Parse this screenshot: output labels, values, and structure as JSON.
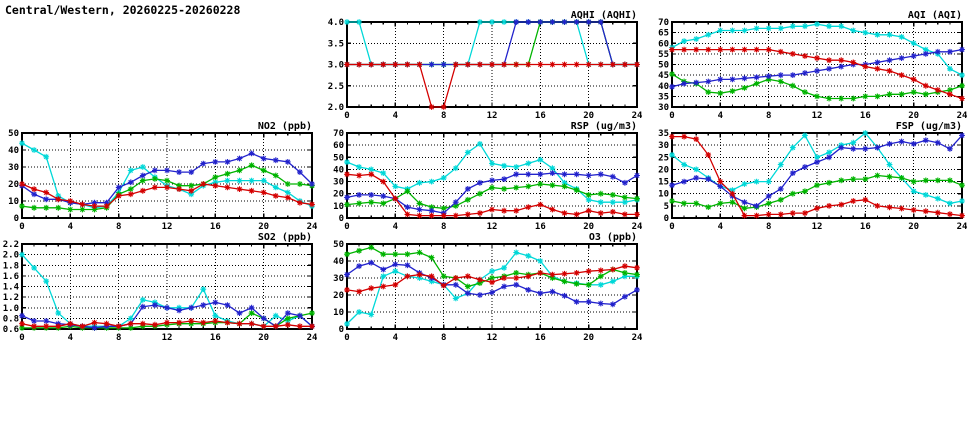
{
  "page": {
    "title": "Central/Western, 20260225-20260228"
  },
  "colors": {
    "red": "#d40000",
    "green": "#00b400",
    "blue": "#2222cc",
    "cyan": "#00d8d8"
  },
  "hours": [
    0,
    1,
    2,
    3,
    4,
    5,
    6,
    7,
    8,
    9,
    10,
    11,
    12,
    13,
    14,
    15,
    16,
    17,
    18,
    19,
    20,
    21,
    22,
    23,
    24
  ],
  "chart_data": [
    {
      "id": "aqhi",
      "type": "line",
      "title": "AQHI (AQHI)",
      "x_range": [
        0,
        24
      ],
      "x_tick_step": 4,
      "ylim": [
        2.0,
        4.0
      ],
      "y_ticks": [
        2.0,
        2.5,
        3.0,
        3.5,
        4.0
      ],
      "y_tick_labels": [
        "2.0",
        "2.5",
        "3.0",
        "3.5",
        "4.0"
      ],
      "grid": true,
      "legend": "none",
      "series": [
        {
          "name": "station-cyan",
          "color": "cyan",
          "values": [
            4,
            4,
            3,
            3,
            3,
            3,
            3,
            3,
            3,
            3,
            3,
            4,
            4,
            4,
            4,
            4,
            4,
            4,
            4,
            4,
            3,
            3,
            3,
            3,
            3
          ]
        },
        {
          "name": "station-green",
          "color": "green",
          "values": [
            3,
            3,
            3,
            3,
            3,
            3,
            3,
            3,
            3,
            3,
            3,
            3,
            3,
            3,
            3,
            3,
            4,
            4,
            4,
            4,
            4,
            4,
            3,
            3,
            3
          ]
        },
        {
          "name": "station-blue",
          "color": "blue",
          "values": [
            3,
            3,
            3,
            3,
            3,
            3,
            3,
            3,
            3,
            3,
            3,
            3,
            3,
            3,
            4,
            4,
            4,
            4,
            4,
            4,
            4,
            4,
            3,
            3,
            3
          ]
        },
        {
          "name": "station-red",
          "color": "red",
          "values": [
            3,
            3,
            3,
            3,
            3,
            3,
            3,
            2,
            2,
            3,
            3,
            3,
            3,
            3,
            3,
            3,
            3,
            3,
            3,
            3,
            3,
            3,
            3,
            3,
            3
          ]
        }
      ]
    },
    {
      "id": "aqi",
      "type": "line",
      "title": "AQI (AQI)",
      "x_range": [
        0,
        24
      ],
      "x_tick_step": 4,
      "ylim": [
        30,
        70
      ],
      "y_ticks": [
        30,
        35,
        40,
        45,
        50,
        55,
        60,
        65,
        70
      ],
      "y_tick_labels": [
        "30",
        "35",
        "40",
        "45",
        "50",
        "55",
        "60",
        "65",
        "70"
      ],
      "grid": true,
      "legend": "none",
      "series": [
        {
          "name": "station-cyan",
          "color": "cyan",
          "values": [
            58,
            61,
            62,
            64,
            66,
            66,
            66,
            67,
            67,
            67,
            68,
            68,
            69,
            68,
            68,
            66,
            65,
            64,
            64,
            63,
            60,
            57,
            55,
            48,
            45
          ]
        },
        {
          "name": "station-green",
          "color": "green",
          "values": [
            45.5,
            42,
            41,
            37,
            36.5,
            37.5,
            39,
            41,
            43,
            42,
            40,
            37,
            35,
            34,
            34,
            34,
            35,
            35,
            36,
            36,
            37,
            36,
            37,
            38,
            40
          ]
        },
        {
          "name": "station-blue",
          "color": "blue",
          "values": [
            39.5,
            41,
            41.5,
            42,
            43,
            43,
            43.5,
            44,
            44.5,
            45,
            45,
            46,
            47,
            48,
            49,
            50,
            50,
            51,
            52,
            53,
            54,
            55,
            56,
            56,
            57
          ]
        },
        {
          "name": "station-red",
          "color": "red",
          "values": [
            57,
            57,
            57,
            57,
            57,
            57,
            57,
            57,
            57,
            56,
            55,
            54,
            53,
            52,
            52,
            51,
            49,
            48,
            47,
            45,
            43,
            40,
            38,
            36,
            34
          ]
        }
      ]
    },
    {
      "id": "no2",
      "type": "line",
      "title": "NO2 (ppb)",
      "x_range": [
        0,
        24
      ],
      "x_tick_step": 4,
      "ylim": [
        0,
        50
      ],
      "y_ticks": [
        0,
        10,
        20,
        30,
        40,
        50
      ],
      "y_tick_labels": [
        "0",
        "10",
        "20",
        "30",
        "40",
        "50"
      ],
      "grid": true,
      "legend": "none",
      "series": [
        {
          "name": "station-cyan",
          "color": "cyan",
          "values": [
            44,
            40,
            36,
            13,
            9,
            8,
            6,
            7,
            15,
            28,
            30,
            24,
            19,
            17,
            14,
            19,
            21,
            22,
            22,
            22,
            22,
            18,
            15,
            10,
            7
          ]
        },
        {
          "name": "station-green",
          "color": "green",
          "values": [
            7,
            6,
            6,
            6,
            5,
            5,
            5,
            6,
            14,
            17,
            22,
            23,
            22,
            19,
            19,
            20,
            24,
            26,
            28,
            31,
            28,
            25,
            20,
            20,
            19
          ]
        },
        {
          "name": "station-blue",
          "color": "blue",
          "values": [
            19,
            14,
            11,
            11,
            9,
            8,
            9,
            9,
            18,
            21,
            25,
            28,
            28,
            27,
            27,
            32,
            33,
            33,
            35,
            38,
            35,
            34,
            33,
            27,
            20
          ]
        },
        {
          "name": "station-red",
          "color": "red",
          "values": [
            20,
            17,
            15,
            11,
            10,
            8,
            7,
            7,
            13,
            14,
            16,
            18,
            18,
            17,
            16,
            20,
            19,
            18,
            17,
            16,
            15,
            13,
            12,
            9,
            8
          ]
        }
      ]
    },
    {
      "id": "rsp",
      "type": "line",
      "title": "RSP (ug/m3)",
      "x_range": [
        0,
        24
      ],
      "x_tick_step": 4,
      "ylim": [
        0,
        70
      ],
      "y_ticks": [
        0,
        10,
        20,
        30,
        40,
        50,
        60,
        70
      ],
      "y_tick_labels": [
        "0",
        "10",
        "20",
        "30",
        "40",
        "50",
        "60",
        "70"
      ],
      "grid": true,
      "legend": "none",
      "series": [
        {
          "name": "station-cyan",
          "color": "cyan",
          "values": [
            46,
            42,
            40,
            37,
            26,
            24,
            29,
            30,
            33,
            41,
            54,
            61,
            45,
            43,
            42,
            45,
            48,
            41,
            29,
            24,
            15,
            13,
            13,
            13,
            15
          ]
        },
        {
          "name": "station-green",
          "color": "green",
          "values": [
            11,
            12,
            13,
            12,
            16,
            22,
            12,
            9,
            8,
            10,
            15,
            20,
            25,
            24,
            25,
            26,
            28,
            27,
            26,
            23,
            19,
            20,
            19,
            17,
            16
          ]
        },
        {
          "name": "station-blue",
          "color": "blue",
          "values": [
            17,
            19,
            19,
            18,
            16,
            9,
            7,
            6,
            4,
            13,
            24,
            29,
            31,
            32,
            36,
            36,
            36,
            37,
            36,
            36,
            35,
            36,
            34,
            29,
            35
          ]
        },
        {
          "name": "station-red",
          "color": "red",
          "values": [
            36,
            35,
            36,
            30,
            16,
            3,
            2,
            2,
            2,
            2,
            3,
            4,
            7,
            6,
            6,
            9,
            11,
            7,
            4,
            3,
            6,
            4,
            5,
            3,
            3
          ]
        }
      ]
    },
    {
      "id": "fsp",
      "type": "line",
      "title": "FSP (ug/m3)",
      "x_range": [
        0,
        24
      ],
      "x_tick_step": 4,
      "ylim": [
        0,
        35
      ],
      "y_ticks": [
        0,
        5,
        10,
        15,
        20,
        25,
        30,
        35
      ],
      "y_tick_labels": [
        "0",
        "5",
        "10",
        "15",
        "20",
        "25",
        "30",
        "35"
      ],
      "grid": true,
      "legend": "none",
      "series": [
        {
          "name": "station-cyan",
          "color": "cyan",
          "values": [
            26,
            22,
            20,
            16.5,
            13,
            11.5,
            14,
            15,
            15,
            22,
            29,
            34,
            25,
            27,
            30,
            31,
            35,
            29,
            22,
            16.5,
            11,
            9.5,
            8,
            6,
            7
          ]
        },
        {
          "name": "station-green",
          "color": "green",
          "values": [
            7,
            6,
            6,
            4.5,
            6,
            6.5,
            4,
            4.5,
            6,
            7.5,
            10,
            11,
            13.5,
            14.5,
            15.5,
            16,
            16,
            17.5,
            17,
            16.5,
            15,
            15.5,
            15.5,
            15.5,
            13.5
          ]
        },
        {
          "name": "station-blue",
          "color": "blue",
          "values": [
            13.5,
            15,
            16.5,
            16,
            13,
            9,
            6.5,
            5,
            9,
            12,
            18.5,
            21,
            23,
            25,
            29,
            28.5,
            28.5,
            29,
            30.5,
            31.5,
            30.5,
            32,
            31,
            28.5,
            34
          ]
        },
        {
          "name": "station-red",
          "color": "red",
          "values": [
            33.5,
            33.5,
            32.5,
            26,
            15,
            10,
            1,
            1,
            1.5,
            1.5,
            2,
            2,
            4,
            5,
            5.5,
            7,
            7.5,
            5,
            4.4,
            3.9,
            3.3,
            2.8,
            2.2,
            1.6,
            1
          ]
        }
      ]
    },
    {
      "id": "so2",
      "type": "line",
      "title": "SO2 (ppb)",
      "x_range": [
        0,
        24
      ],
      "x_tick_step": 4,
      "ylim": [
        0.6,
        2.2
      ],
      "y_ticks": [
        0.6,
        0.8,
        1.0,
        1.2,
        1.4,
        1.6,
        1.8,
        2.0,
        2.2
      ],
      "y_tick_labels": [
        "0.6",
        "0.8",
        "1.0",
        "1.2",
        "1.4",
        "1.6",
        "1.8",
        "2.0",
        "2.2"
      ],
      "grid": true,
      "legend": "none",
      "series": [
        {
          "name": "station-cyan",
          "color": "cyan",
          "values": [
            2.0,
            1.75,
            1.5,
            0.9,
            0.7,
            0.65,
            0.65,
            0.65,
            0.65,
            0.8,
            1.15,
            1.1,
            1.0,
            1.0,
            1.0,
            1.35,
            0.85,
            0.75,
            0.7,
            0.7,
            0.65,
            0.85,
            0.75,
            0.85,
            0.65
          ]
        },
        {
          "name": "station-green",
          "color": "green",
          "values": [
            0.62,
            0.62,
            0.62,
            0.62,
            0.65,
            0.62,
            0.62,
            0.62,
            0.62,
            0.62,
            0.65,
            0.65,
            0.68,
            0.7,
            0.7,
            0.7,
            0.72,
            0.72,
            0.7,
            0.9,
            0.8,
            0.65,
            0.8,
            0.85,
            0.9
          ]
        },
        {
          "name": "station-blue",
          "color": "blue",
          "values": [
            0.85,
            0.75,
            0.75,
            0.7,
            0.68,
            0.65,
            0.62,
            0.65,
            0.65,
            0.7,
            1.02,
            1.05,
            1.0,
            0.95,
            1.0,
            1.05,
            1.1,
            1.05,
            0.9,
            1.0,
            0.8,
            0.65,
            0.9,
            0.85,
            0.65
          ]
        },
        {
          "name": "station-red",
          "color": "red",
          "values": [
            0.7,
            0.65,
            0.65,
            0.65,
            0.7,
            0.65,
            0.72,
            0.7,
            0.65,
            0.7,
            0.7,
            0.68,
            0.72,
            0.72,
            0.75,
            0.72,
            0.75,
            0.72,
            0.7,
            0.7,
            0.65,
            0.65,
            0.68,
            0.65,
            0.65
          ]
        }
      ]
    },
    {
      "id": "o3",
      "type": "line",
      "title": "O3 (ppb)",
      "x_range": [
        0,
        24
      ],
      "x_tick_step": 4,
      "ylim": [
        0,
        50
      ],
      "y_ticks": [
        0,
        10,
        20,
        30,
        40,
        50
      ],
      "y_tick_labels": [
        "0",
        "10",
        "20",
        "30",
        "40",
        "50"
      ],
      "grid": true,
      "legend": "none",
      "series": [
        {
          "name": "station-cyan",
          "color": "cyan",
          "values": [
            3,
            10,
            8.5,
            31,
            34,
            31,
            30,
            28,
            26,
            18,
            21,
            29,
            34,
            36,
            45,
            43,
            40,
            31,
            28,
            27,
            26,
            26,
            28,
            31,
            31
          ]
        },
        {
          "name": "station-green",
          "color": "green",
          "values": [
            44,
            46,
            48,
            44,
            44,
            44,
            45,
            42,
            31,
            30,
            25,
            27,
            30,
            31,
            33,
            32,
            33,
            30,
            28,
            26.5,
            26,
            31,
            35,
            33,
            32
          ]
        },
        {
          "name": "station-blue",
          "color": "blue",
          "values": [
            32,
            37,
            39,
            35,
            38,
            37.5,
            33,
            30,
            26,
            26,
            21,
            20,
            21.5,
            25,
            26,
            23,
            21,
            22,
            19.5,
            16,
            16,
            15,
            14.5,
            19,
            23
          ]
        },
        {
          "name": "station-red",
          "color": "red",
          "values": [
            23,
            22,
            24,
            25,
            26,
            31,
            32,
            31,
            25.5,
            30,
            31,
            29,
            27.5,
            30,
            30,
            31,
            33,
            32,
            32.5,
            33,
            34,
            34.5,
            35,
            37,
            36
          ]
        }
      ]
    }
  ]
}
